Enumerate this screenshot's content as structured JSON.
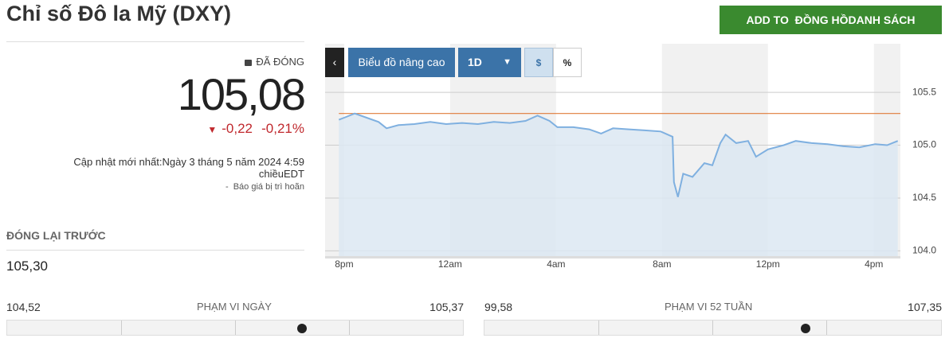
{
  "header": {
    "title": "Chỉ số Đô la Mỹ (DXY)",
    "button": "ADD TO  ĐỒNG HỒDANH SÁCH"
  },
  "quote": {
    "status": "ĐÃ ĐÓNG",
    "price": "105,08",
    "change": "-0,22",
    "change_percent": "-0,21%",
    "updated": "Cập nhật mới nhất:Ngày 3 tháng 5 năm 2024 4:59 chiềuEDT",
    "delay_note": "-  Báo giá bị trì hoãn"
  },
  "previous_close": {
    "label": "ĐÓNG LẠI TRƯỚC",
    "value": "105,30"
  },
  "ranges": [
    {
      "low": "104,52",
      "label": "PHẠM VI NGÀY",
      "high": "105,37"
    },
    {
      "low": "99,58",
      "label": "PHẠM VI 52 TUẦN",
      "high": "107,35"
    }
  ],
  "toolbar": {
    "advanced": "Biểu đồ nâng cao",
    "period": "1D",
    "dollar": "$",
    "percent": "%"
  },
  "chart_data": {
    "type": "line",
    "color": "#7fb0e0",
    "reference_line": 105.3,
    "reference_color": "#e07b39",
    "x": [
      -0.2,
      0,
      0.4,
      0.85,
      1.3,
      1.6,
      2.05,
      2.65,
      3.25,
      3.85,
      4.45,
      5.05,
      5.65,
      6.25,
      6.85,
      7.3,
      7.75,
      8.05,
      8.65,
      9.25,
      9.7,
      10.15,
      10.75,
      11.35,
      11.95,
      12.4,
      12.45,
      12.6,
      12.8,
      13.15,
      13.6,
      13.9,
      14.2,
      14.4,
      14.8,
      15.25,
      15.55,
      16.0,
      16.6,
      17.05,
      17.65,
      18.25,
      18.85,
      19.45,
      20.05,
      20.5,
      20.9
    ],
    "values": [
      105.24,
      105.26,
      105.3,
      105.26,
      105.22,
      105.16,
      105.19,
      105.2,
      105.22,
      105.2,
      105.21,
      105.2,
      105.22,
      105.21,
      105.23,
      105.28,
      105.23,
      105.17,
      105.17,
      105.15,
      105.11,
      105.16,
      105.15,
      105.14,
      105.13,
      105.08,
      104.65,
      104.51,
      104.73,
      104.7,
      104.83,
      104.81,
      105.02,
      105.1,
      105.02,
      105.04,
      104.89,
      104.96,
      105.0,
      105.04,
      105.02,
      105.01,
      104.99,
      104.98,
      105.01,
      105.0,
      105.04
    ],
    "xlim": [
      -0.72,
      21
    ],
    "xticks": [
      {
        "value": 0,
        "label": "8pm"
      },
      {
        "value": 4,
        "label": "12am"
      },
      {
        "value": 8,
        "label": "4am"
      },
      {
        "value": 12,
        "label": "8am"
      },
      {
        "value": 16,
        "label": "12pm"
      },
      {
        "value": 20,
        "label": "4pm"
      }
    ],
    "ylim": [
      103.95,
      105.96
    ],
    "yticks": [
      105.5,
      {
        "value": 105,
        "label": "105.0"
      },
      104.5,
      {
        "value": 104,
        "label": "104.0"
      }
    ],
    "grid": true
  }
}
